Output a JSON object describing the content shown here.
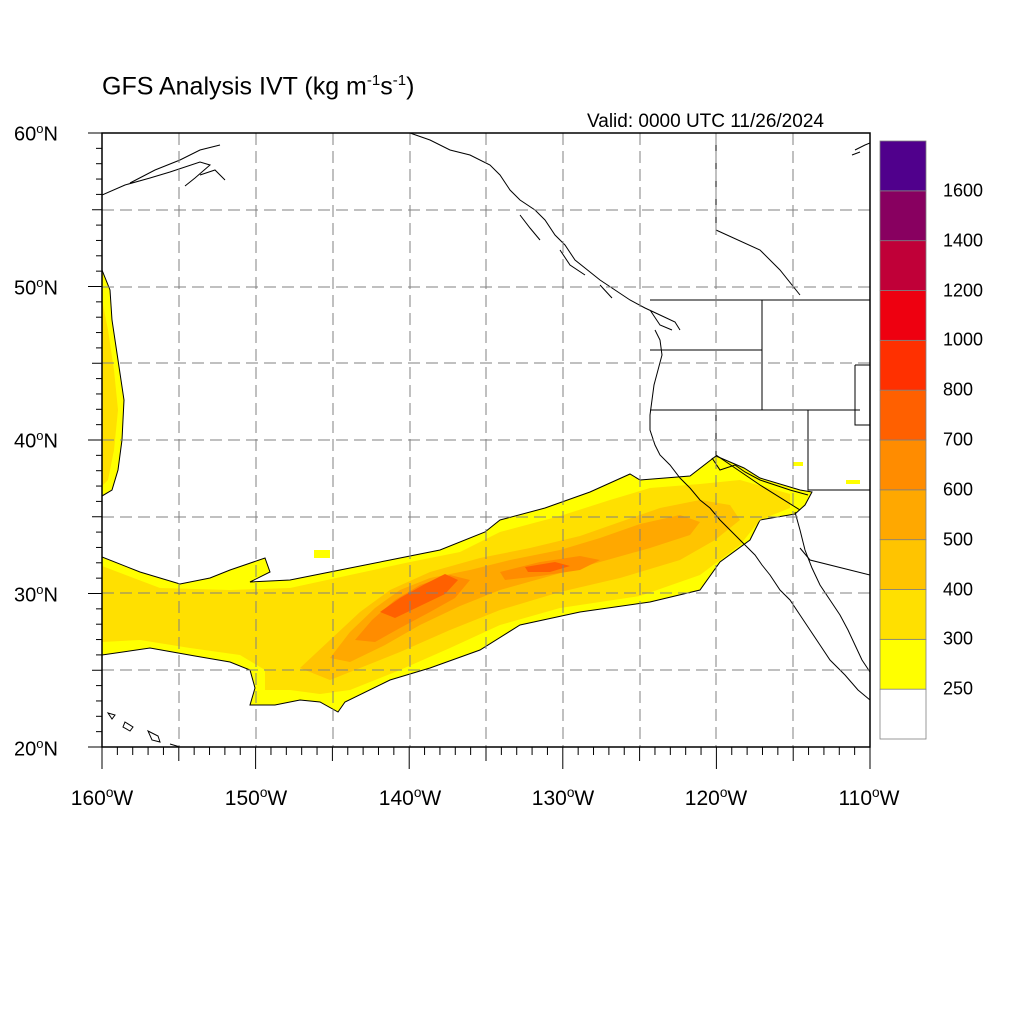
{
  "map": {
    "title_main": "GFS Analysis IVT (kg m",
    "title_exp1": "-1",
    "title_mid": "s",
    "title_exp2": "-1",
    "title_end": ")",
    "valid_label": "Valid: 0000 UTC 11/26/2024",
    "lat_labels": [
      {
        "num": "60",
        "deg": "o",
        "hem": "N"
      },
      {
        "num": "50",
        "deg": "o",
        "hem": "N"
      },
      {
        "num": "40",
        "deg": "o",
        "hem": "N"
      },
      {
        "num": "30",
        "deg": "o",
        "hem": "N"
      },
      {
        "num": "20",
        "deg": "o",
        "hem": "N"
      }
    ],
    "lon_labels": [
      {
        "num": "160",
        "deg": "o",
        "hem": "W"
      },
      {
        "num": "150",
        "deg": "o",
        "hem": "W"
      },
      {
        "num": "140",
        "deg": "o",
        "hem": "W"
      },
      {
        "num": "130",
        "deg": "o",
        "hem": "W"
      },
      {
        "num": "120",
        "deg": "o",
        "hem": "W"
      },
      {
        "num": "110",
        "deg": "o",
        "hem": "W"
      }
    ],
    "extent": {
      "lon_min": -160,
      "lon_max": -110,
      "lat_min": 20,
      "lat_max": 60
    },
    "gridlines": "dashed every 5 degrees",
    "colorbar": {
      "labels": [
        "250",
        "300",
        "400",
        "500",
        "600",
        "700",
        "800",
        "1000",
        "1200",
        "1400",
        "1600"
      ],
      "colors": [
        "#ffffff",
        "#ffff00",
        "#ffe000",
        "#ffc400",
        "#ffa800",
        "#ff8c00",
        "#ff6000",
        "#ff3000",
        "#ee0010",
        "#c00038",
        "#880060",
        "#50008c"
      ]
    },
    "fill_colors": {
      "yellow": "#ffff00",
      "light": "#ffe000",
      "mid": "#ffc400",
      "orange": "#ffa800",
      "dark": "#ff8c00",
      "red": "#ff6000"
    }
  }
}
